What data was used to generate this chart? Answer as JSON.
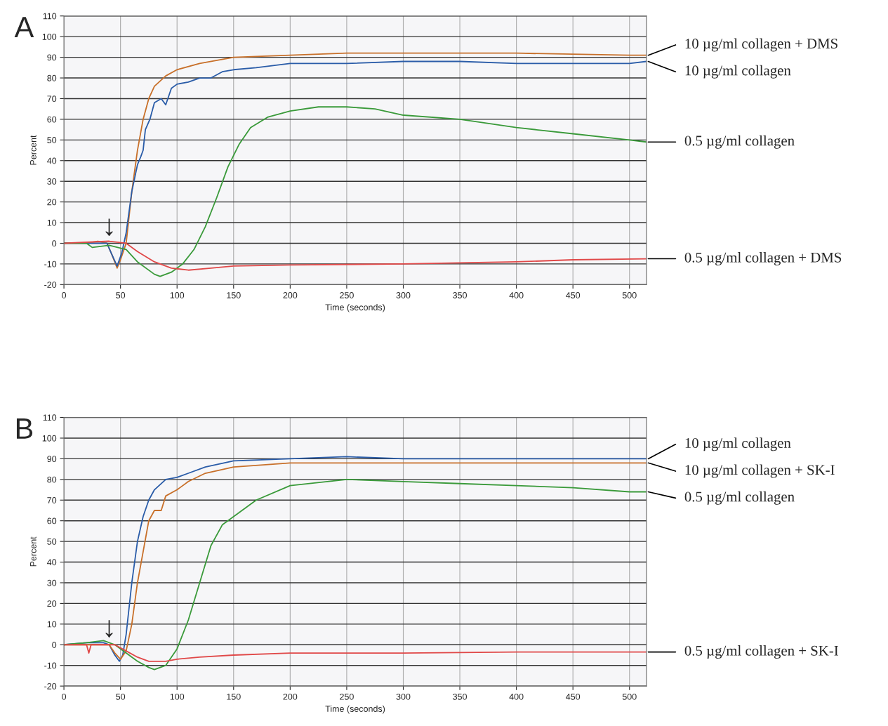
{
  "chart_data": [
    {
      "type": "line",
      "title": "A",
      "xlabel": "Time (seconds)",
      "ylabel": "Percent",
      "xlim": [
        0,
        515
      ],
      "ylim": [
        -20,
        110
      ],
      "xticks": [
        0,
        50,
        100,
        150,
        200,
        250,
        300,
        350,
        400,
        450,
        500
      ],
      "yticks": [
        -20,
        -10,
        0,
        10,
        20,
        30,
        40,
        50,
        60,
        70,
        80,
        90,
        100,
        110
      ],
      "grid": true,
      "legend": false,
      "marker": "none",
      "line_style": "solid",
      "annotations": [
        {
          "text": "↓",
          "x": 40,
          "y": 1
        }
      ],
      "series": [
        {
          "name": "10 µg/ml collagen + DMS",
          "color": "#c8702a",
          "x": [
            0,
            20,
            30,
            38,
            42,
            47,
            50,
            55,
            60,
            65,
            70,
            75,
            80,
            90,
            100,
            120,
            150,
            200,
            250,
            300,
            400,
            500,
            515
          ],
          "values": [
            0,
            0,
            1,
            0,
            -5,
            -12,
            -8,
            0,
            25,
            45,
            60,
            70,
            76,
            81,
            84,
            87,
            90,
            91,
            92,
            92,
            92,
            91,
            91
          ]
        },
        {
          "name": "10 µg/ml collagen",
          "color": "#2a5ca8",
          "x": [
            0,
            20,
            38,
            42,
            47,
            51,
            55,
            60,
            65,
            68,
            70,
            72,
            76,
            80,
            86,
            90,
            95,
            100,
            110,
            120,
            130,
            140,
            150,
            170,
            200,
            250,
            300,
            350,
            400,
            450,
            500,
            515
          ],
          "values": [
            0,
            0,
            0,
            -5,
            -11,
            -5,
            5,
            25,
            38,
            42,
            45,
            55,
            60,
            68,
            70,
            67,
            75,
            77,
            78,
            80,
            80,
            83,
            84,
            85,
            87,
            87,
            88,
            88,
            87,
            87,
            87,
            88
          ]
        },
        {
          "name": "0.5 µg/ml collagen",
          "color": "#3a9a3a",
          "x": [
            0,
            20,
            25,
            40,
            55,
            65,
            80,
            85,
            95,
            105,
            115,
            125,
            135,
            145,
            155,
            165,
            180,
            200,
            225,
            250,
            275,
            300,
            350,
            400,
            450,
            500,
            515
          ],
          "values": [
            0,
            0,
            -2,
            -1,
            -3,
            -9,
            -15,
            -16,
            -14,
            -10,
            -3,
            8,
            22,
            37,
            48,
            56,
            61,
            64,
            66,
            66,
            65,
            62,
            60,
            56,
            53,
            50,
            49
          ]
        },
        {
          "name": "0.5 µg/ml collagen + DMS",
          "color": "#e04848",
          "x": [
            0,
            40,
            55,
            65,
            80,
            95,
            110,
            130,
            150,
            200,
            300,
            400,
            450,
            515
          ],
          "values": [
            0,
            1,
            0,
            -4,
            -9,
            -12,
            -13,
            -12,
            -11,
            -10.5,
            -10,
            -9,
            -8,
            -7.5
          ]
        }
      ]
    },
    {
      "type": "line",
      "title": "B",
      "xlabel": "Time (seconds)",
      "ylabel": "Percent",
      "xlim": [
        0,
        515
      ],
      "ylim": [
        -20,
        110
      ],
      "xticks": [
        0,
        50,
        100,
        150,
        200,
        250,
        300,
        350,
        400,
        450,
        500
      ],
      "yticks": [
        -20,
        -10,
        0,
        10,
        20,
        30,
        40,
        50,
        60,
        70,
        80,
        90,
        100,
        110
      ],
      "grid": true,
      "legend": false,
      "marker": "none",
      "line_style": "solid",
      "annotations": [
        {
          "text": "↓",
          "x": 40,
          "y": 1
        }
      ],
      "series": [
        {
          "name": "10 µg/ml collagen",
          "color": "#2a5ca8",
          "x": [
            0,
            20,
            35,
            40,
            45,
            49,
            52,
            55,
            60,
            65,
            70,
            75,
            80,
            90,
            100,
            110,
            125,
            150,
            200,
            250,
            300,
            400,
            500,
            515
          ],
          "values": [
            0,
            1,
            1,
            0,
            -5,
            -8,
            -5,
            5,
            30,
            50,
            62,
            70,
            75,
            80,
            81,
            83,
            86,
            89,
            90,
            91,
            90,
            90,
            90,
            90
          ]
        },
        {
          "name": "10 µg/ml collagen + SK-I",
          "color": "#c8702a",
          "x": [
            0,
            40,
            45,
            50,
            55,
            60,
            65,
            70,
            75,
            80,
            86,
            90,
            100,
            110,
            125,
            150,
            200,
            250,
            300,
            400,
            500,
            515
          ],
          "values": [
            0,
            0,
            -4,
            -7,
            -3,
            10,
            30,
            45,
            60,
            65,
            65,
            72,
            75,
            79,
            83,
            86,
            88,
            88,
            88,
            88,
            88,
            88
          ]
        },
        {
          "name": "0.5 µg/ml collagen",
          "color": "#3a9a3a",
          "x": [
            0,
            20,
            35,
            45,
            55,
            65,
            75,
            80,
            90,
            100,
            110,
            120,
            130,
            140,
            150,
            170,
            200,
            250,
            300,
            350,
            400,
            450,
            500,
            515
          ],
          "values": [
            0,
            1,
            2,
            0,
            -4,
            -8,
            -11,
            -12,
            -10,
            -2,
            12,
            30,
            48,
            58,
            62,
            70,
            77,
            80,
            79,
            78,
            77,
            76,
            74,
            74
          ]
        },
        {
          "name": "0.5 µg/ml collagen + SK-I",
          "color": "#e04848",
          "x": [
            0,
            20,
            22,
            24,
            45,
            55,
            65,
            75,
            90,
            100,
            120,
            150,
            200,
            300,
            400,
            515
          ],
          "values": [
            0,
            0,
            -4,
            0,
            0,
            -3,
            -6,
            -8,
            -8,
            -7,
            -6,
            -5,
            -4,
            -4,
            -3.5,
            -3.5
          ]
        }
      ]
    }
  ]
}
